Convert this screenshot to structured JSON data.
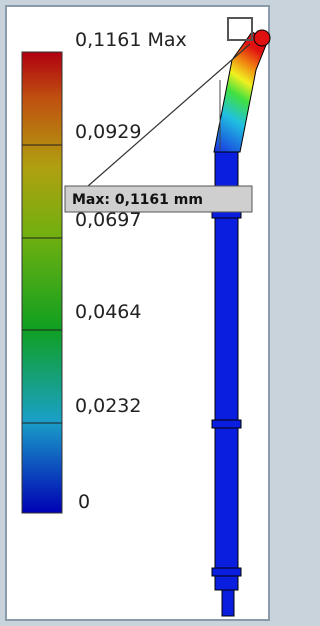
{
  "legend": {
    "labels": [
      "0,1161 Max",
      "0,0929",
      "0,0697",
      "0,0464",
      "0,0232",
      "0"
    ]
  },
  "callout": "Max: 0,1161 mm"
}
